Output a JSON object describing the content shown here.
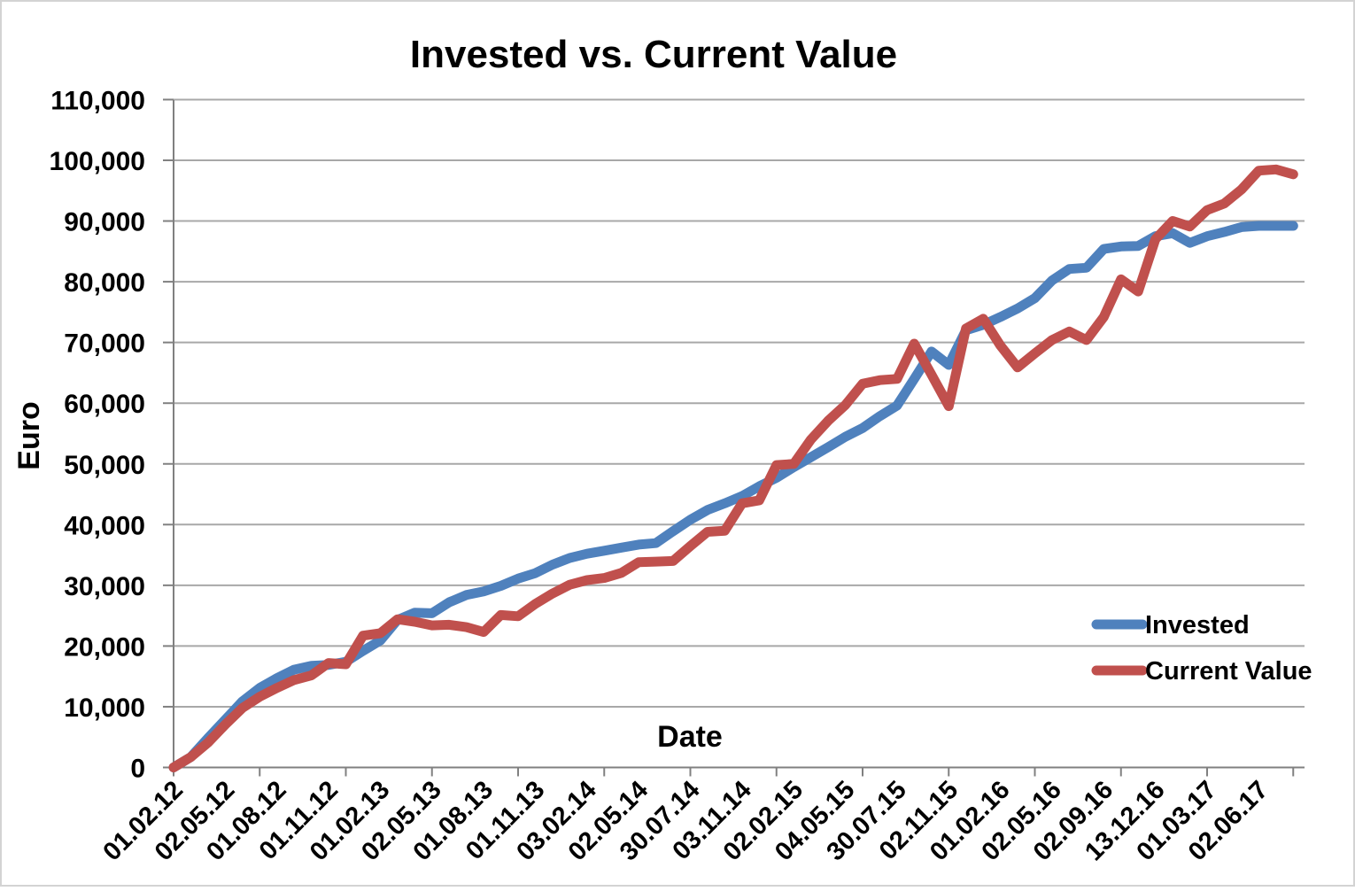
{
  "chart_data": {
    "type": "line",
    "title": "Invested vs. Current Value",
    "xlabel": "Date",
    "ylabel": "Euro",
    "ylim": [
      0,
      110000
    ],
    "ytick_step": 10000,
    "y_tick_labels": [
      "0",
      "10,000",
      "20,000",
      "30,000",
      "40,000",
      "50,000",
      "60,000",
      "70,000",
      "80,000",
      "90,000",
      "100,000",
      "110,000"
    ],
    "x_tick_labels": [
      "01.02.12",
      "02.05.12",
      "01.08.12",
      "01.11.12",
      "01.02.13",
      "02.05.13",
      "01.08.13",
      "01.11.13",
      "03.02.14",
      "02.05.14",
      "30.07.14",
      "03.11.14",
      "02.02.15",
      "04.05.15",
      "30.07.15",
      "02.11.15",
      "01.02.16",
      "02.05.16",
      "02.09.16",
      "13.12.16",
      "01.03.17",
      "02.06.17"
    ],
    "label_every_n_points": 3,
    "tick_every_n_points": 5,
    "grid": true,
    "legend_position": "right-middle",
    "series": [
      {
        "name": "Invested",
        "color": "#4F81BD",
        "values": [
          0,
          1700,
          4850,
          7850,
          10900,
          13100,
          14700,
          16100,
          16750,
          16900,
          17400,
          19200,
          20900,
          24300,
          25500,
          25400,
          27200,
          28400,
          29000,
          29900,
          31100,
          32000,
          33400,
          34500,
          35200,
          35700,
          36200,
          36700,
          36950,
          38900,
          40800,
          42400,
          43500,
          44700,
          46300,
          47700,
          49450,
          51100,
          52750,
          54450,
          55900,
          57850,
          59600,
          64000,
          68500,
          66300,
          72000,
          72900,
          74200,
          75600,
          77300,
          80200,
          82100,
          82300,
          85400,
          85800,
          85900,
          87500,
          88000,
          86400,
          87500,
          88200,
          89000,
          89200,
          89200,
          89200
        ]
      },
      {
        "name": "Current Value",
        "color": "#C0504D",
        "values": [
          0,
          1700,
          4100,
          7050,
          9800,
          11650,
          13100,
          14400,
          15150,
          17200,
          17000,
          21700,
          22100,
          24400,
          24000,
          23400,
          23500,
          23100,
          22300,
          25100,
          24900,
          26950,
          28650,
          30100,
          30850,
          31200,
          32050,
          33800,
          33900,
          34000,
          36450,
          38800,
          39000,
          43500,
          44000,
          49800,
          50000,
          54000,
          57100,
          59700,
          63200,
          63800,
          64000,
          69800,
          64700,
          59500,
          72300,
          73900,
          69500,
          65900,
          68200,
          70400,
          71800,
          70400,
          74200,
          80400,
          78400,
          87000,
          90000,
          89100,
          91800,
          92900,
          95200,
          98300,
          98500,
          97700
        ]
      }
    ],
    "colors": {
      "background": "#FFFFFF",
      "gridline": "#A8A8A8",
      "axis": "#808080",
      "chart_border": "#D3D3D3",
      "text": "#000000"
    }
  }
}
